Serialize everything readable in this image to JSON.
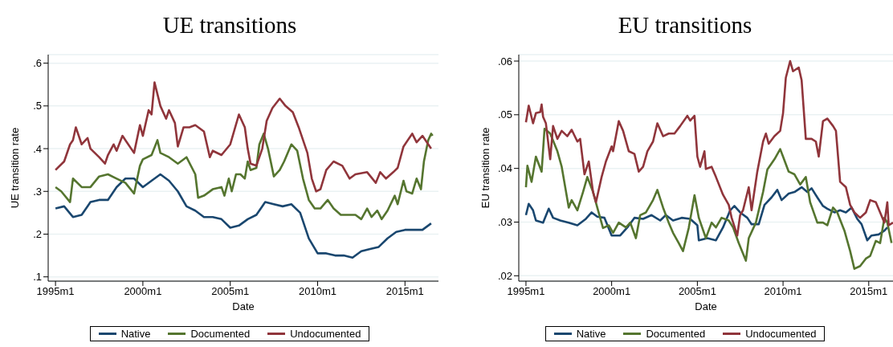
{
  "chart_data": [
    {
      "type": "line",
      "title": "UE transitions",
      "xlabel": "Date",
      "ylabel": "UE transition rate",
      "xlim": [
        "1994-08",
        "2016-12"
      ],
      "ylim": [
        0.09,
        0.62
      ],
      "xticks": [
        {
          "value": "1995-01",
          "label": "1995m1"
        },
        {
          "value": "2000-01",
          "label": "2000m1"
        },
        {
          "value": "2005-01",
          "label": "2005m1"
        },
        {
          "value": "2010-01",
          "label": "2010m1"
        },
        {
          "value": "2015-01",
          "label": "2015m1"
        }
      ],
      "yticks": [
        {
          "value": 0.1,
          "label": ".1"
        },
        {
          "value": 0.2,
          "label": ".2"
        },
        {
          "value": 0.3,
          "label": ".3"
        },
        {
          "value": 0.4,
          "label": ".4"
        },
        {
          "value": 0.5,
          "label": ".5"
        },
        {
          "value": 0.6,
          "label": ".6"
        }
      ],
      "grid": "y",
      "legend": "bottom",
      "series": [
        {
          "name": "Native",
          "color": "#1a476f",
          "x": [
            "1995-01",
            "1995-07",
            "1996-01",
            "1996-07",
            "1997-01",
            "1997-07",
            "1998-01",
            "1998-07",
            "1999-01",
            "1999-07",
            "2000-01",
            "2000-07",
            "2001-01",
            "2001-07",
            "2002-01",
            "2002-07",
            "2003-01",
            "2003-07",
            "2004-01",
            "2004-07",
            "2005-01",
            "2005-07",
            "2006-01",
            "2006-07",
            "2007-01",
            "2007-07",
            "2008-01",
            "2008-07",
            "2009-01",
            "2009-07",
            "2010-01",
            "2010-07",
            "2011-01",
            "2011-07",
            "2012-01",
            "2012-07",
            "2013-01",
            "2013-07",
            "2014-01",
            "2014-07",
            "2015-01",
            "2015-07",
            "2016-01",
            "2016-07"
          ],
          "values": [
            0.26,
            0.265,
            0.24,
            0.245,
            0.275,
            0.28,
            0.28,
            0.31,
            0.33,
            0.33,
            0.31,
            0.325,
            0.34,
            0.325,
            0.3,
            0.265,
            0.255,
            0.24,
            0.24,
            0.235,
            0.215,
            0.22,
            0.235,
            0.245,
            0.275,
            0.27,
            0.265,
            0.27,
            0.25,
            0.19,
            0.155,
            0.155,
            0.15,
            0.15,
            0.145,
            0.16,
            0.165,
            0.17,
            0.19,
            0.205,
            0.21,
            0.21,
            0.21,
            0.225
          ]
        },
        {
          "name": "Documented",
          "color": "#55752f",
          "x": [
            "1995-01",
            "1995-05",
            "1995-11",
            "1996-01",
            "1996-07",
            "1997-01",
            "1997-07",
            "1998-01",
            "1998-07",
            "1999-01",
            "1999-07",
            "1999-11",
            "2000-01",
            "2000-07",
            "2000-11",
            "2001-01",
            "2001-07",
            "2002-01",
            "2002-07",
            "2003-01",
            "2003-03",
            "2003-07",
            "2004-01",
            "2004-07",
            "2004-09",
            "2004-12",
            "2005-02",
            "2005-05",
            "2005-08",
            "2005-11",
            "2006-01",
            "2006-03",
            "2006-07",
            "2006-09",
            "2006-12",
            "2007-03",
            "2007-07",
            "2007-11",
            "2008-02",
            "2008-07",
            "2008-11",
            "2009-03",
            "2009-07",
            "2009-11",
            "2010-03",
            "2010-08",
            "2010-12",
            "2011-05",
            "2011-11",
            "2012-03",
            "2012-07",
            "2012-11",
            "2013-02",
            "2013-06",
            "2013-09",
            "2014-01",
            "2014-06",
            "2014-08",
            "2014-12",
            "2015-02",
            "2015-06",
            "2015-09",
            "2015-12",
            "2016-02",
            "2016-05",
            "2016-07",
            "2016-08"
          ],
          "values": [
            0.31,
            0.3,
            0.275,
            0.33,
            0.31,
            0.31,
            0.335,
            0.34,
            0.33,
            0.32,
            0.295,
            0.36,
            0.375,
            0.385,
            0.42,
            0.39,
            0.38,
            0.365,
            0.38,
            0.34,
            0.285,
            0.29,
            0.305,
            0.31,
            0.29,
            0.33,
            0.3,
            0.34,
            0.34,
            0.33,
            0.37,
            0.35,
            0.355,
            0.41,
            0.435,
            0.4,
            0.335,
            0.35,
            0.37,
            0.41,
            0.395,
            0.33,
            0.28,
            0.26,
            0.26,
            0.28,
            0.26,
            0.245,
            0.245,
            0.245,
            0.235,
            0.26,
            0.24,
            0.255,
            0.235,
            0.255,
            0.29,
            0.27,
            0.325,
            0.3,
            0.295,
            0.33,
            0.305,
            0.37,
            0.42,
            0.435,
            0.43
          ]
        },
        {
          "name": "Undocumented",
          "color": "#90353b",
          "x": [
            "1995-01",
            "1995-07",
            "1995-11",
            "1996-01",
            "1996-03",
            "1996-07",
            "1996-11",
            "1997-01",
            "1997-07",
            "1997-11",
            "1998-01",
            "1998-05",
            "1998-07",
            "1998-11",
            "1999-01",
            "1999-07",
            "1999-11",
            "2000-01",
            "2000-05",
            "2000-07",
            "2000-09",
            "2001-01",
            "2001-05",
            "2001-07",
            "2001-11",
            "2002-01",
            "2002-05",
            "2002-09",
            "2003-01",
            "2003-07",
            "2003-11",
            "2004-01",
            "2004-07",
            "2005-01",
            "2005-07",
            "2005-11",
            "2006-01",
            "2006-03",
            "2006-07",
            "2006-11",
            "2007-02",
            "2007-06",
            "2007-11",
            "2008-03",
            "2008-08",
            "2008-12",
            "2009-06",
            "2009-09",
            "2009-12",
            "2010-03",
            "2010-07",
            "2010-12",
            "2011-06",
            "2011-11",
            "2012-03",
            "2012-11",
            "2013-05",
            "2013-08",
            "2013-12",
            "2014-05",
            "2014-08",
            "2014-12",
            "2015-06",
            "2015-09",
            "2016-01",
            "2016-07"
          ],
          "values": [
            0.35,
            0.37,
            0.41,
            0.42,
            0.45,
            0.41,
            0.425,
            0.4,
            0.38,
            0.365,
            0.385,
            0.41,
            0.395,
            0.43,
            0.42,
            0.39,
            0.455,
            0.43,
            0.49,
            0.48,
            0.555,
            0.5,
            0.47,
            0.49,
            0.46,
            0.405,
            0.45,
            0.45,
            0.455,
            0.44,
            0.38,
            0.395,
            0.385,
            0.41,
            0.48,
            0.45,
            0.4,
            0.365,
            0.36,
            0.4,
            0.465,
            0.495,
            0.517,
            0.5,
            0.485,
            0.45,
            0.39,
            0.33,
            0.3,
            0.305,
            0.35,
            0.37,
            0.36,
            0.33,
            0.34,
            0.345,
            0.32,
            0.345,
            0.33,
            0.345,
            0.355,
            0.405,
            0.435,
            0.415,
            0.43,
            0.4
          ]
        }
      ]
    },
    {
      "type": "line",
      "title": "EU transitions",
      "xlabel": "Date",
      "ylabel": "EU transition rate",
      "xlim": [
        "1994-08",
        "2016-06"
      ],
      "ylim": [
        0.019,
        0.0612
      ],
      "xticks": [
        {
          "value": "1995-01",
          "label": "1995m1"
        },
        {
          "value": "2000-01",
          "label": "2000m1"
        },
        {
          "value": "2005-01",
          "label": "2005m1"
        },
        {
          "value": "2010-01",
          "label": "2010m1"
        },
        {
          "value": "2015-01",
          "label": "2015m1"
        }
      ],
      "yticks": [
        {
          "value": 0.02,
          "label": ".02"
        },
        {
          "value": 0.03,
          "label": ".03"
        },
        {
          "value": 0.04,
          "label": ".04"
        },
        {
          "value": 0.05,
          "label": ".05"
        },
        {
          "value": 0.06,
          "label": ".06"
        }
      ],
      "grid": "y",
      "legend": "bottom",
      "series": [
        {
          "name": "Native",
          "color": "#1a476f",
          "x": [
            "1995-01",
            "1995-03",
            "1995-06",
            "1995-08",
            "1996-01",
            "1996-05",
            "1996-08",
            "1997-01",
            "1997-07",
            "1998-01",
            "1998-07",
            "1998-11",
            "1999-03",
            "1999-08",
            "2000-01",
            "2000-07",
            "2000-12",
            "2001-05",
            "2001-11",
            "2002-05",
            "2002-11",
            "2003-03",
            "2003-08",
            "2004-02",
            "2004-08",
            "2005-01",
            "2005-02",
            "2005-08",
            "2006-02",
            "2006-07",
            "2006-12",
            "2007-03",
            "2007-07",
            "2007-12",
            "2008-03",
            "2008-08",
            "2008-12",
            "2009-05",
            "2009-09",
            "2009-12",
            "2010-05",
            "2010-09",
            "2011-02",
            "2011-06",
            "2011-09",
            "2012-01",
            "2012-05",
            "2012-08",
            "2013-01",
            "2013-05",
            "2013-09",
            "2014-01",
            "2014-05",
            "2014-08",
            "2014-12",
            "2015-03",
            "2015-08",
            "2015-12",
            "2016-02"
          ],
          "values": [
            0.0313,
            0.0334,
            0.0322,
            0.0303,
            0.0299,
            0.0325,
            0.0308,
            0.0303,
            0.0299,
            0.0294,
            0.0306,
            0.0318,
            0.031,
            0.0308,
            0.0275,
            0.0275,
            0.029,
            0.0308,
            0.0306,
            0.0313,
            0.0303,
            0.0313,
            0.0303,
            0.0308,
            0.0306,
            0.0294,
            0.0266,
            0.027,
            0.0266,
            0.029,
            0.0322,
            0.033,
            0.0318,
            0.0308,
            0.0296,
            0.0296,
            0.0332,
            0.0346,
            0.036,
            0.0341,
            0.0353,
            0.0356,
            0.0365,
            0.0356,
            0.0363,
            0.0346,
            0.033,
            0.0325,
            0.0318,
            0.0322,
            0.0318,
            0.0327,
            0.0306,
            0.0296,
            0.0266,
            0.0275,
            0.0277,
            0.0284,
            0.029
          ]
        },
        {
          "name": "Documented",
          "color": "#55752f",
          "x": [
            "1995-01",
            "1995-02",
            "1995-05",
            "1995-08",
            "1995-12",
            "1996-02",
            "1996-06",
            "1996-11",
            "1997-02",
            "1997-07",
            "1997-09",
            "1998-01",
            "1998-05",
            "1998-08",
            "1998-12",
            "1999-03",
            "1999-07",
            "1999-11",
            "2000-02",
            "2000-06",
            "2000-11",
            "2001-02",
            "2001-06",
            "2001-09",
            "2002-01",
            "2002-06",
            "2002-09",
            "2003-01",
            "2003-05",
            "2003-08",
            "2003-12",
            "2004-03",
            "2004-07",
            "2004-11",
            "2005-02",
            "2005-07",
            "2005-11",
            "2006-02",
            "2006-06",
            "2006-11",
            "2007-02",
            "2007-06",
            "2007-11",
            "2008-01",
            "2008-06",
            "2008-11",
            "2009-02",
            "2009-07",
            "2009-11",
            "2010-01",
            "2010-05",
            "2010-09",
            "2011-01",
            "2011-05",
            "2011-08",
            "2012-01",
            "2012-05",
            "2012-08",
            "2012-12",
            "2013-03",
            "2013-08",
            "2013-12",
            "2014-03",
            "2014-07",
            "2014-11",
            "2015-02",
            "2015-06",
            "2015-09",
            "2015-12",
            "2016-02",
            "2016-05"
          ],
          "values": [
            0.0365,
            0.0405,
            0.0375,
            0.0422,
            0.0394,
            0.0474,
            0.0465,
            0.0432,
            0.0403,
            0.0327,
            0.0341,
            0.0322,
            0.0356,
            0.0384,
            0.0356,
            0.0327,
            0.0289,
            0.0294,
            0.028,
            0.0299,
            0.029,
            0.0299,
            0.027,
            0.0313,
            0.0318,
            0.0341,
            0.036,
            0.0327,
            0.0299,
            0.028,
            0.0261,
            0.0246,
            0.0289,
            0.035,
            0.0308,
            0.027,
            0.0299,
            0.029,
            0.0308,
            0.0303,
            0.029,
            0.0261,
            0.0228,
            0.027,
            0.0299,
            0.0356,
            0.0398,
            0.0417,
            0.0436,
            0.0422,
            0.0394,
            0.0389,
            0.037,
            0.0384,
            0.0337,
            0.0299,
            0.0299,
            0.0294,
            0.0327,
            0.0318,
            0.0284,
            0.0246,
            0.0213,
            0.0218,
            0.0232,
            0.0237,
            0.0265,
            0.0261,
            0.0308,
            0.0299,
            0.0261
          ]
        },
        {
          "name": "Undocumented",
          "color": "#90353b",
          "x": [
            "1995-01",
            "1995-03",
            "1995-06",
            "1995-08",
            "1995-11",
            "1995-12",
            "1996-01",
            "1996-03",
            "1996-06",
            "1996-08",
            "1996-11",
            "1997-02",
            "1997-06",
            "1997-09",
            "1998-01",
            "1998-03",
            "1998-06",
            "1998-09",
            "1998-12",
            "1999-02",
            "1999-06",
            "1999-09",
            "2000-01",
            "2000-02",
            "2000-06",
            "2000-09",
            "2001-01",
            "2001-05",
            "2001-08",
            "2001-11",
            "2002-02",
            "2002-06",
            "2002-09",
            "2003-01",
            "2003-05",
            "2003-09",
            "2004-01",
            "2004-06",
            "2004-08",
            "2004-11",
            "2005-01",
            "2005-03",
            "2005-06",
            "2005-07",
            "2005-11",
            "2006-02",
            "2006-07",
            "2006-11",
            "2007-01",
            "2007-05",
            "2007-07",
            "2007-09",
            "2008-01",
            "2008-03",
            "2008-07",
            "2008-11",
            "2009-01",
            "2009-03",
            "2009-07",
            "2009-11",
            "2010-01",
            "2010-03",
            "2010-06",
            "2010-08",
            "2010-12",
            "2011-02",
            "2011-05",
            "2011-09",
            "2011-12",
            "2012-02",
            "2012-05",
            "2012-08",
            "2012-12",
            "2013-02",
            "2013-05",
            "2013-09",
            "2013-12",
            "2014-03",
            "2014-07",
            "2014-11",
            "2015-02",
            "2015-06",
            "2015-09",
            "2015-12",
            "2016-02",
            "2016-03",
            "2016-06"
          ],
          "values": [
            0.0486,
            0.0517,
            0.0484,
            0.0503,
            0.0505,
            0.0519,
            0.0496,
            0.0484,
            0.0417,
            0.0479,
            0.0455,
            0.047,
            0.046,
            0.0472,
            0.045,
            0.0455,
            0.0389,
            0.0413,
            0.0356,
            0.0337,
            0.0384,
            0.0413,
            0.0441,
            0.0432,
            0.0488,
            0.047,
            0.0432,
            0.0427,
            0.0394,
            0.0403,
            0.0432,
            0.045,
            0.0484,
            0.046,
            0.0465,
            0.0465,
            0.0479,
            0.0498,
            0.0489,
            0.0498,
            0.0422,
            0.0403,
            0.0432,
            0.0399,
            0.0403,
            0.0384,
            0.0351,
            0.0332,
            0.0308,
            0.0275,
            0.0313,
            0.0322,
            0.0365,
            0.0322,
            0.0394,
            0.045,
            0.0465,
            0.0446,
            0.046,
            0.047,
            0.0503,
            0.0569,
            0.06,
            0.0581,
            0.0588,
            0.0564,
            0.0455,
            0.0455,
            0.045,
            0.0422,
            0.0488,
            0.0493,
            0.0479,
            0.047,
            0.0375,
            0.0365,
            0.0332,
            0.0318,
            0.0308,
            0.0318,
            0.0341,
            0.0337,
            0.0318,
            0.0299,
            0.0337,
            0.0294,
            0.0299
          ]
        }
      ]
    }
  ]
}
